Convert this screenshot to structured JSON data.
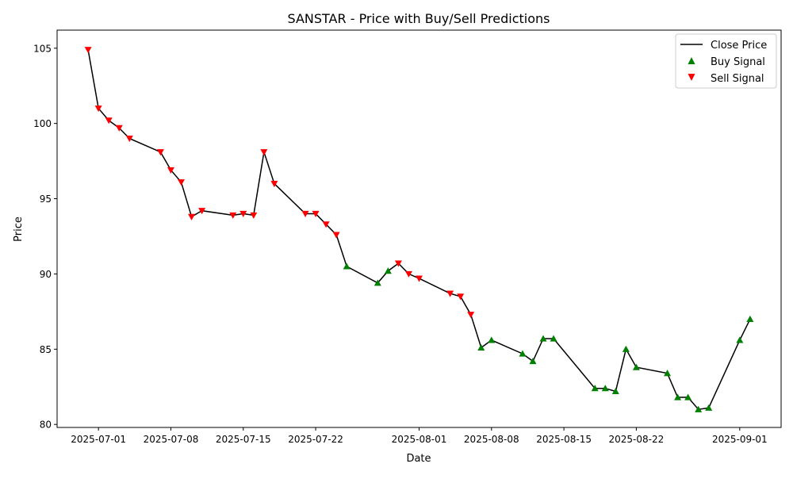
{
  "chart_data": {
    "type": "line",
    "title": "SANSTAR - Price with Buy/Sell Predictions",
    "xlabel": "Date",
    "ylabel": "Price",
    "x_ticks": [
      "2025-07-01",
      "2025-07-08",
      "2025-07-15",
      "2025-07-22",
      "2025-08-01",
      "2025-08-08",
      "2025-08-15",
      "2025-08-22",
      "2025-09-01"
    ],
    "y_ticks": [
      80,
      85,
      90,
      95,
      100,
      105
    ],
    "ylim": [
      79.8,
      106.2
    ],
    "xlim": [
      "2025-06-27",
      "2025-09-05"
    ],
    "grid": false,
    "legend_position": "top-right",
    "legend": [
      {
        "label": "Close Price",
        "kind": "line",
        "color": "#000000"
      },
      {
        "label": "Buy Signal",
        "kind": "triangle-up",
        "color": "#008000"
      },
      {
        "label": "Sell Signal",
        "kind": "triangle-down",
        "color": "#ff0000"
      }
    ],
    "series": [
      {
        "name": "Close Price",
        "color": "#000000",
        "points": [
          [
            "2025-06-30",
            104.9,
            "sell"
          ],
          [
            "2025-07-01",
            101.0,
            "sell"
          ],
          [
            "2025-07-02",
            100.2,
            "sell"
          ],
          [
            "2025-07-03",
            99.7,
            "sell"
          ],
          [
            "2025-07-04",
            99.0,
            "sell"
          ],
          [
            "2025-07-07",
            98.1,
            "sell"
          ],
          [
            "2025-07-08",
            96.9,
            "sell"
          ],
          [
            "2025-07-09",
            96.1,
            "sell"
          ],
          [
            "2025-07-10",
            93.8,
            "sell"
          ],
          [
            "2025-07-11",
            94.2,
            "sell"
          ],
          [
            "2025-07-14",
            93.9,
            "sell"
          ],
          [
            "2025-07-15",
            94.0,
            "sell"
          ],
          [
            "2025-07-16",
            93.9,
            "sell"
          ],
          [
            "2025-07-17",
            98.1,
            "sell"
          ],
          [
            "2025-07-18",
            96.0,
            "sell"
          ],
          [
            "2025-07-21",
            94.0,
            "sell"
          ],
          [
            "2025-07-22",
            94.0,
            "sell"
          ],
          [
            "2025-07-23",
            93.3,
            "sell"
          ],
          [
            "2025-07-24",
            92.6,
            "sell"
          ],
          [
            "2025-07-25",
            90.5,
            "buy"
          ],
          [
            "2025-07-28",
            89.4,
            "buy"
          ],
          [
            "2025-07-29",
            90.2,
            "buy"
          ],
          [
            "2025-07-30",
            90.7,
            "sell"
          ],
          [
            "2025-07-31",
            90.0,
            "sell"
          ],
          [
            "2025-08-01",
            89.7,
            "sell"
          ],
          [
            "2025-08-04",
            88.7,
            "sell"
          ],
          [
            "2025-08-05",
            88.5,
            "sell"
          ],
          [
            "2025-08-06",
            87.3,
            "sell"
          ],
          [
            "2025-08-07",
            85.1,
            "buy"
          ],
          [
            "2025-08-08",
            85.6,
            "buy"
          ],
          [
            "2025-08-11",
            84.7,
            "buy"
          ],
          [
            "2025-08-12",
            84.2,
            "buy"
          ],
          [
            "2025-08-13",
            85.7,
            "buy"
          ],
          [
            "2025-08-14",
            85.7,
            "buy"
          ],
          [
            "2025-08-18",
            82.4,
            "buy"
          ],
          [
            "2025-08-19",
            82.4,
            "buy"
          ],
          [
            "2025-08-20",
            82.2,
            "buy"
          ],
          [
            "2025-08-21",
            85.0,
            "buy"
          ],
          [
            "2025-08-22",
            83.8,
            "buy"
          ],
          [
            "2025-08-25",
            83.4,
            "buy"
          ],
          [
            "2025-08-26",
            81.8,
            "buy"
          ],
          [
            "2025-08-27",
            81.8,
            "buy"
          ],
          [
            "2025-08-28",
            81.0,
            "buy"
          ],
          [
            "2025-08-29",
            81.1,
            "buy"
          ],
          [
            "2025-09-01",
            85.6,
            "buy"
          ],
          [
            "2025-09-02",
            87.0,
            "buy"
          ]
        ]
      }
    ]
  }
}
